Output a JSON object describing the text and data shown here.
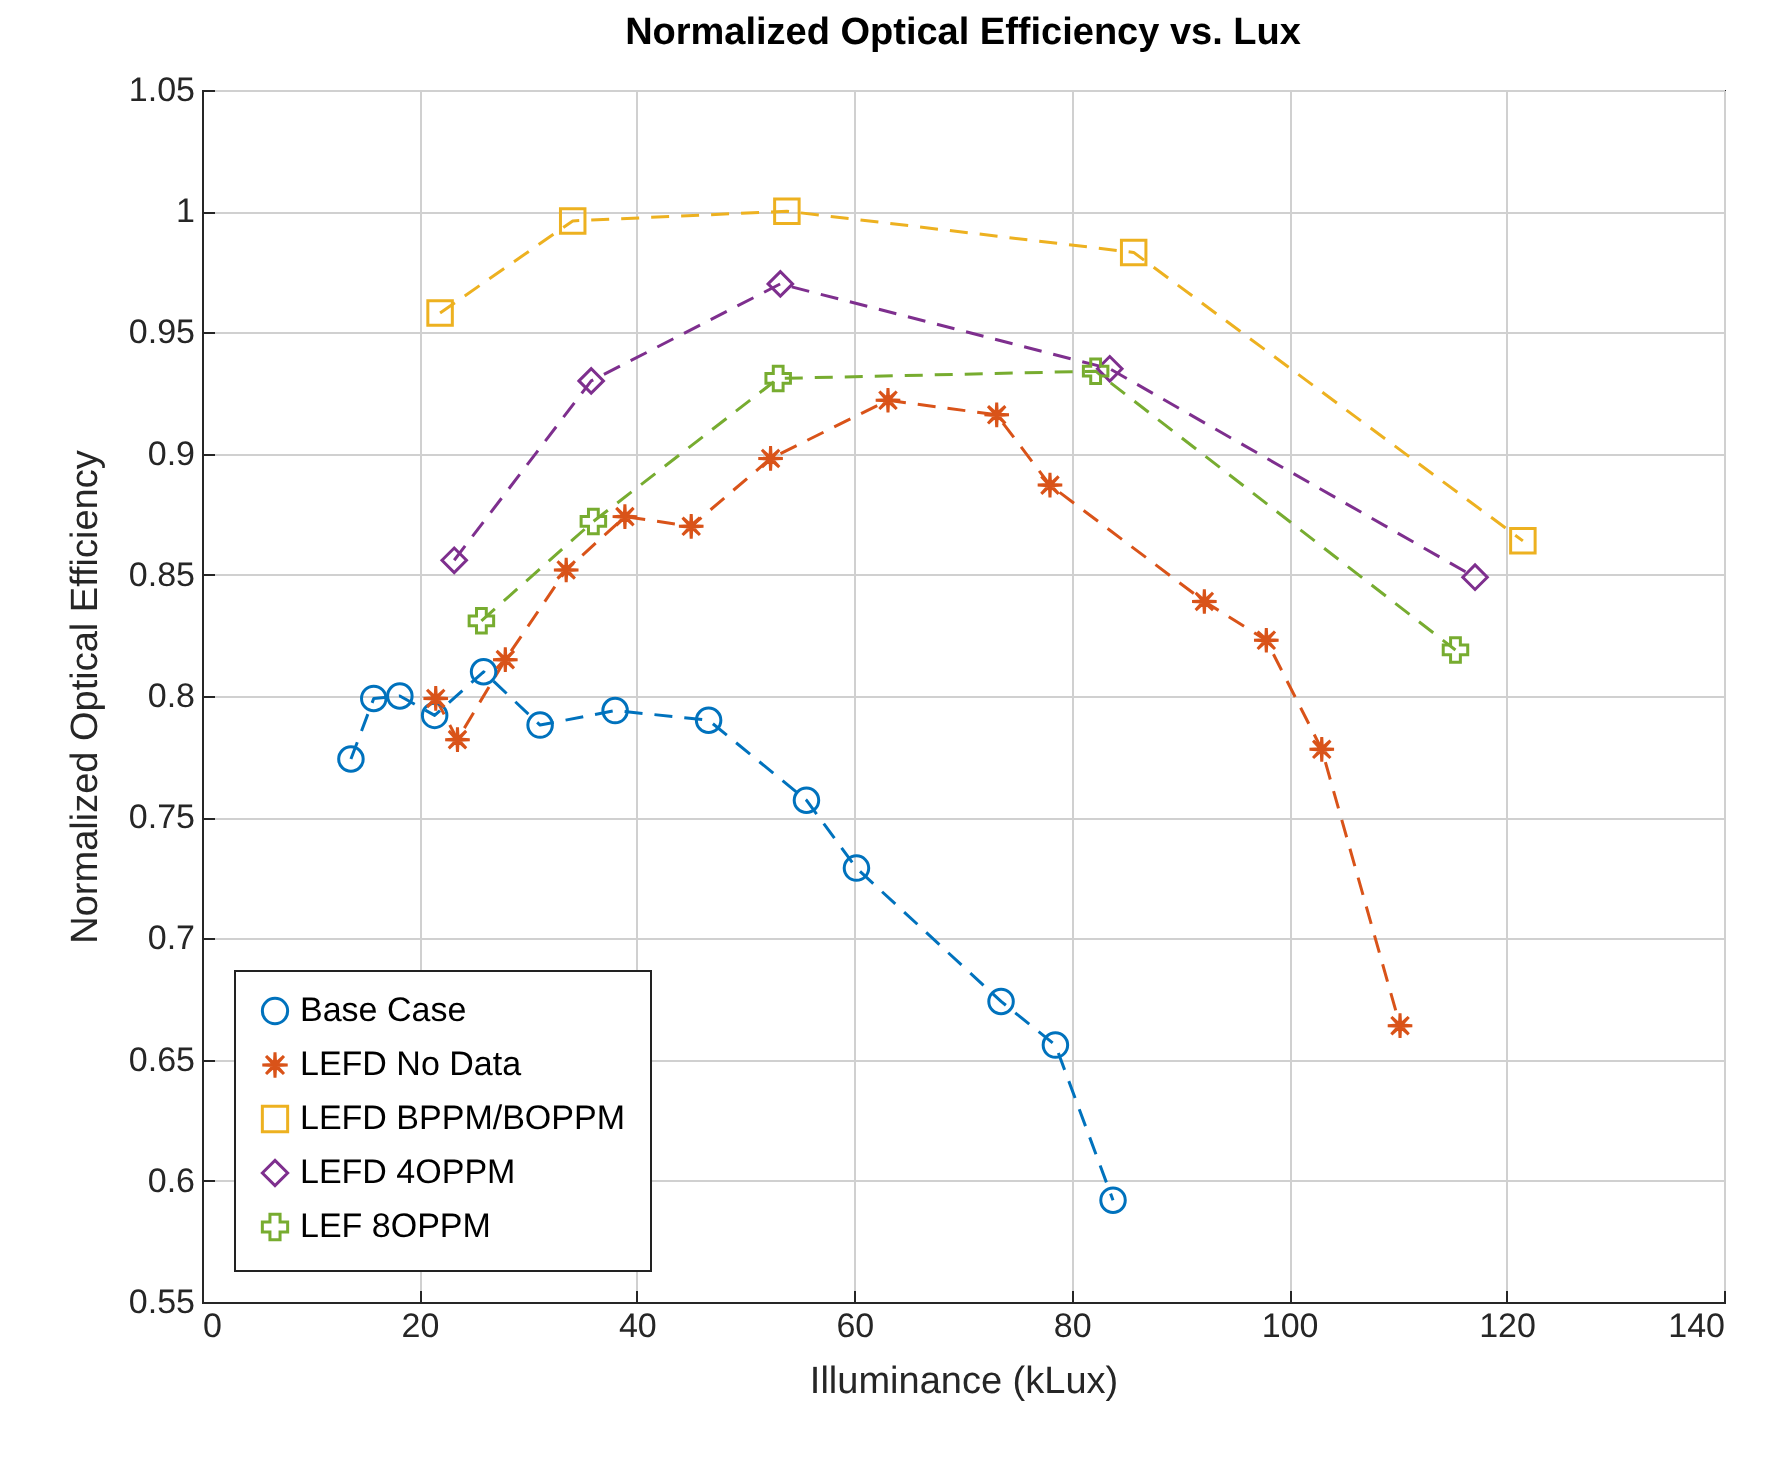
{
  "chart_data": {
    "type": "line",
    "title": "Normalized Optical Efficiency vs. Lux",
    "xlabel": "Illuminance (kLux)",
    "ylabel": "Normalized Optical Efficiency",
    "xlim": [
      0,
      140
    ],
    "xticks": [
      0,
      20,
      40,
      60,
      80,
      100,
      120,
      140
    ],
    "ylim": [
      0.55,
      1.05
    ],
    "yticks": [
      0.55,
      0.6,
      0.65,
      0.7,
      0.75,
      0.8,
      0.85,
      0.9,
      0.95,
      1,
      1.05
    ],
    "grid": true,
    "legend": "bottom left",
    "line_style": "dashed",
    "series": [
      {
        "name": "Base Case",
        "color": "#0072bd",
        "marker": "circle",
        "x": [
          13.7,
          15.8,
          18.2,
          21.4,
          25.9,
          31.1,
          38.0,
          46.6,
          55.6,
          60.2,
          73.5,
          78.5,
          83.8
        ],
        "values": [
          0.774,
          0.799,
          0.8,
          0.792,
          0.81,
          0.788,
          0.794,
          0.79,
          0.757,
          0.729,
          0.674,
          0.656,
          0.592
        ]
      },
      {
        "name": "LEFD No Data",
        "color": "#d95319",
        "marker": "star",
        "x": [
          21.5,
          23.5,
          27.9,
          33.5,
          38.9,
          45.0,
          52.3,
          63.1,
          73.1,
          78.0,
          92.2,
          97.9,
          103.0,
          110.2
        ],
        "values": [
          0.799,
          0.782,
          0.815,
          0.852,
          0.874,
          0.87,
          0.898,
          0.922,
          0.916,
          0.887,
          0.839,
          0.823,
          0.778,
          0.664
        ]
      },
      {
        "name": "LEFD BPPM/BOPPM",
        "color": "#edb120",
        "marker": "square",
        "x": [
          21.9,
          34.1,
          53.8,
          85.7,
          121.5
        ],
        "values": [
          0.958,
          0.996,
          1.0,
          0.983,
          0.864
        ]
      },
      {
        "name": "LEFD 4OPPM",
        "color": "#7e2f8e",
        "marker": "diamond",
        "x": [
          23.2,
          35.8,
          53.2,
          83.5,
          117.1
        ],
        "values": [
          0.856,
          0.93,
          0.97,
          0.935,
          0.849
        ]
      },
      {
        "name": "LEF 8OPPM",
        "color": "#77ac30",
        "marker": "cross",
        "x": [
          25.7,
          36.0,
          53.0,
          82.2,
          115.3
        ],
        "values": [
          0.831,
          0.872,
          0.931,
          0.934,
          0.819
        ]
      }
    ]
  }
}
